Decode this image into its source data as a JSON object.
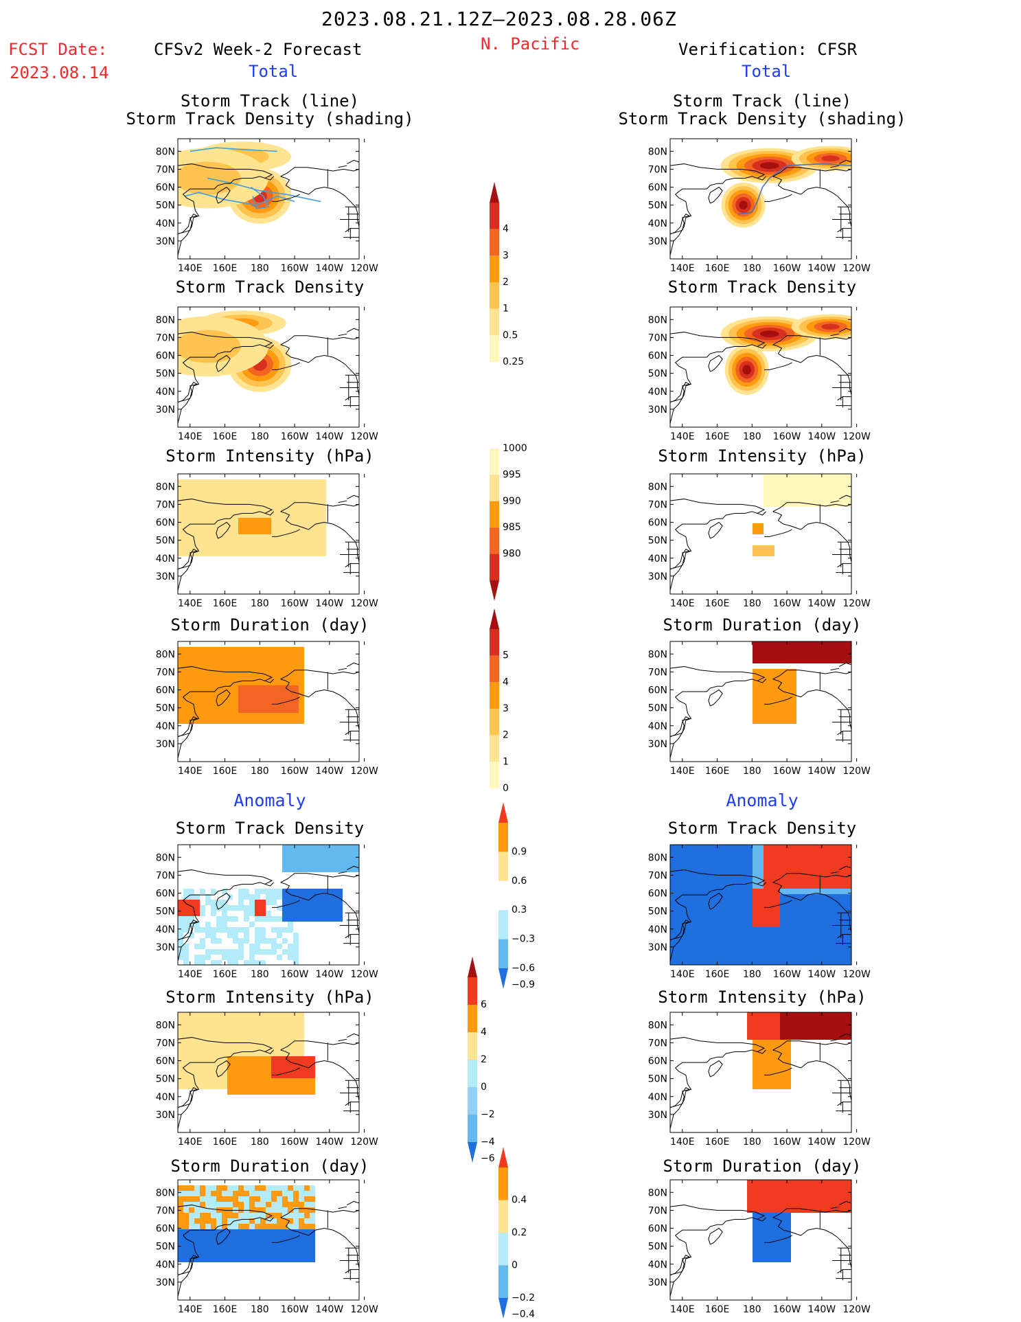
{
  "header": {
    "period": "2023.08.21.12Z–2023.08.28.06Z",
    "fcst_label": "FCST Date:",
    "fcst_date": "2023.08.14",
    "forecast_title": "CFSv2 Week-2 Forecast",
    "region": "N. Pacific",
    "verification_title": "Verification: CFSR",
    "total_label": "Total",
    "anomaly_label": "Anomaly"
  },
  "axes": {
    "lat_ticks": [
      "80N",
      "70N",
      "60N",
      "50N",
      "40N",
      "30N"
    ],
    "lon_ticks": [
      "140E",
      "160E",
      "180",
      "160W",
      "140W",
      "120W"
    ]
  },
  "panels": [
    {
      "row": 0,
      "title": [
        "Storm Track (line)",
        "Storm Track Density (shading)"
      ],
      "palette": "density"
    },
    {
      "row": 1,
      "title": [
        "Storm Track Density"
      ],
      "palette": "density"
    },
    {
      "row": 2,
      "title": [
        "Storm Intensity (hPa)"
      ],
      "palette": "intensity"
    },
    {
      "row": 3,
      "title": [
        "Storm Duration (day)"
      ],
      "palette": "duration"
    },
    {
      "row": 4,
      "title": [
        "Storm Track Density"
      ],
      "palette": "anom"
    },
    {
      "row": 5,
      "title": [
        "Storm Intensity (hPa)"
      ],
      "palette": "anom"
    },
    {
      "row": 6,
      "title": [
        "Storm Duration (day)"
      ],
      "palette": "anom"
    }
  ],
  "colorbars": [
    {
      "id": "density",
      "labels": [
        "4",
        "3",
        "2",
        "1",
        "0.5",
        "0.25"
      ],
      "colors": [
        "#a50f0f",
        "#d7301f",
        "#f26522",
        "#fe9a0f",
        "#fec44f",
        "#fee391",
        "#fff7bc"
      ]
    },
    {
      "id": "intensity",
      "labels": [
        "1000",
        "995",
        "990",
        "985",
        "980"
      ],
      "colors": [
        "#fff7bc",
        "#fee391",
        "#fe9a0f",
        "#f26522",
        "#d7301f",
        "#a50f0f"
      ]
    },
    {
      "id": "duration",
      "labels": [
        "5",
        "4",
        "3",
        "2",
        "1",
        "0"
      ],
      "colors": [
        "#a50f0f",
        "#d7301f",
        "#f26522",
        "#fe9a0f",
        "#fec44f",
        "#fee391",
        "#fff7bc"
      ]
    },
    {
      "id": "anom_density",
      "labels": [
        "0.9",
        "0.6",
        "0.3",
        "−0.3",
        "−0.6",
        "−0.9"
      ],
      "colors": [
        "#f03b20",
        "#fe9a0f",
        "#fee391",
        "#ffffff",
        "#b3ecf8",
        "#63b8f0",
        "#1f6fe0"
      ]
    },
    {
      "id": "anom_intensity",
      "labels": [
        "6",
        "4",
        "2",
        "0",
        "−2",
        "−4",
        "−6"
      ],
      "colors": [
        "#a50f0f",
        "#f03b20",
        "#fe9a0f",
        "#fee391",
        "#b3ecf8",
        "#90d0f5",
        "#63b8f0",
        "#1f6fe0"
      ]
    },
    {
      "id": "anom_duration",
      "labels": [
        "0.4",
        "0.2",
        "0",
        "−0.2",
        "−0.4"
      ],
      "colors": [
        "#f03b20",
        "#fe9a0f",
        "#fee391",
        "#b3ecf8",
        "#63b8f0",
        "#1f6fe0"
      ]
    }
  ],
  "colors": {
    "title_red": "#f2282a",
    "title_blue": "#1f3cff",
    "track_line": "#3ea0e0",
    "track_line_verif": "#5070c0"
  }
}
